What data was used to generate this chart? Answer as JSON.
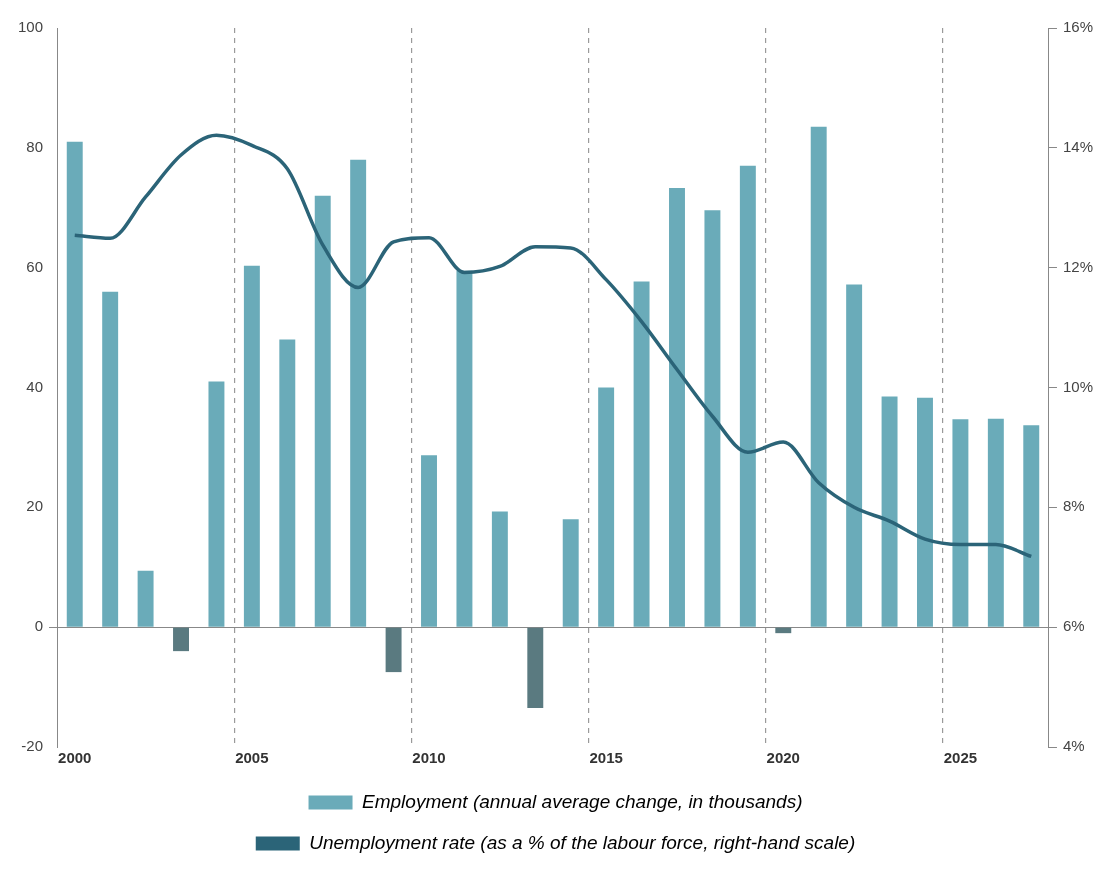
{
  "chart_data": {
    "type": "bar",
    "categories": [
      "2000",
      null,
      null,
      null,
      null,
      "2005",
      null,
      null,
      null,
      null,
      "2010",
      null,
      null,
      null,
      null,
      "2015",
      null,
      null,
      null,
      null,
      "2020",
      null,
      null,
      null,
      null,
      "2025",
      null,
      null
    ],
    "series": [
      {
        "name": "Employment (annual average change, in thousands)",
        "color": "#6aabb9",
        "colors": [
          "#6aabb9",
          "#6aabb9",
          "#6aabb9",
          "#5a7a80",
          "#6aabb9",
          "#6aabb9",
          "#6aabb9",
          "#6aabb9",
          "#6aabb9",
          "#5a7a80",
          "#6aabb9",
          "#6aabb9",
          "#6aabb9",
          "#5a7a80",
          "#6aabb9",
          "#6aabb9",
          "#6aabb9",
          "#6aabb9",
          "#6aabb9",
          "#6aabb9",
          "#5a7a80",
          "#6aabb9",
          "#6aabb9",
          "#6aabb9",
          "#6aabb9",
          "#6aabb9",
          "#6aabb9",
          "#6aabb9"
        ],
        "values": [
          81,
          56,
          9.4,
          -4,
          41,
          60.3,
          48,
          72,
          78,
          -7.5,
          28.7,
          59.5,
          19.3,
          -13.5,
          18,
          40,
          57.7,
          73.3,
          69.6,
          77,
          -1,
          83.5,
          57.2,
          38.5,
          38.3,
          34.7,
          34.8,
          33.7
        ]
      },
      {
        "name": "Unemployment rate (as a % of the labour force, right-hand scale)",
        "type": "line",
        "axis": "y2",
        "color": "#2b6478",
        "values": [
          12.54,
          12.49,
          13.18,
          13.88,
          14.21,
          14.04,
          13.65,
          12.38,
          11.67,
          12.43,
          12.5,
          11.92,
          12.02,
          12.35,
          12.33,
          11.8,
          11.1,
          10.3,
          9.52,
          8.92,
          9.09,
          8.41,
          8.0,
          7.77,
          7.47,
          7.38,
          7.38,
          7.18
        ]
      }
    ],
    "ylim": [
      -20,
      100
    ],
    "yticks": [
      -20,
      0,
      20,
      40,
      60,
      80,
      100
    ],
    "y2lim": [
      4,
      16
    ],
    "y2ticks": [
      {
        "value": 4,
        "label": "4%"
      },
      {
        "value": 6,
        "label": "6%"
      },
      {
        "value": 8,
        "label": "8%"
      },
      {
        "value": 10,
        "label": "10%"
      },
      {
        "value": 12,
        "label": "12%"
      },
      {
        "value": 14,
        "label": "14%"
      },
      {
        "value": 16,
        "label": "16%"
      }
    ],
    "grid": "x",
    "legend": "bottom",
    "marker": "none",
    "line_style": "solid"
  }
}
